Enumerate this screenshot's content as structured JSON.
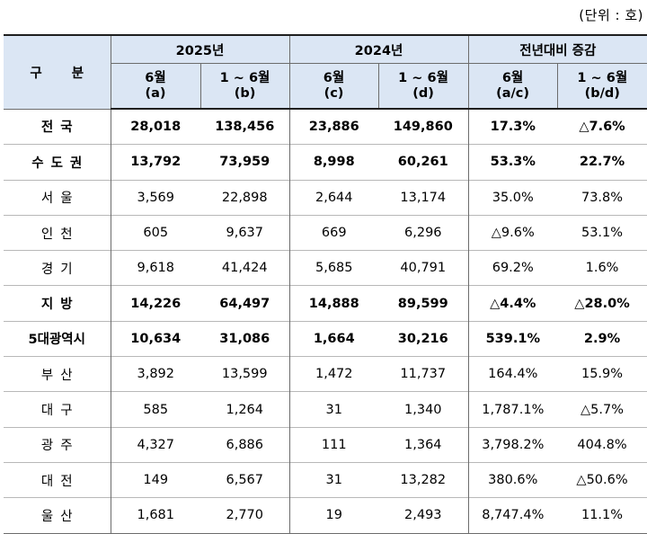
{
  "unit_label": "(단위 : 호)",
  "header": {
    "gubun": "구 분",
    "groups": [
      "2025년",
      "2024년",
      "전년대비 증감"
    ],
    "sub": [
      {
        "line1": "6월",
        "line2": "(a)"
      },
      {
        "line1": "1 ~ 6월",
        "line2": "(b)"
      },
      {
        "line1": "6월",
        "line2": "(c)"
      },
      {
        "line1": "1 ~ 6월",
        "line2": "(d)"
      },
      {
        "line1": "6월",
        "line2": "(a/c)"
      },
      {
        "line1": "1 ~ 6월",
        "line2": "(b/d)"
      }
    ]
  },
  "rows": [
    {
      "label": "전국",
      "values": [
        "28,018",
        "138,456",
        "23,886",
        "149,860",
        "17.3%",
        "△7.6%"
      ]
    },
    {
      "label": "수도권",
      "values": [
        "13,792",
        "73,959",
        "8,998",
        "60,261",
        "53.3%",
        "22.7%"
      ]
    },
    {
      "label": "서울",
      "values": [
        "3,569",
        "22,898",
        "2,644",
        "13,174",
        "35.0%",
        "73.8%"
      ]
    },
    {
      "label": "인천",
      "values": [
        "605",
        "9,637",
        "669",
        "6,296",
        "△9.6%",
        "53.1%"
      ]
    },
    {
      "label": "경기",
      "values": [
        "9,618",
        "41,424",
        "5,685",
        "40,791",
        "69.2%",
        "1.6%"
      ]
    },
    {
      "label": "지방",
      "values": [
        "14,226",
        "64,497",
        "14,888",
        "89,599",
        "△4.4%",
        "△28.0%"
      ]
    },
    {
      "label": "5대광역시",
      "values": [
        "10,634",
        "31,086",
        "1,664",
        "30,216",
        "539.1%",
        "2.9%"
      ]
    },
    {
      "label": "부산",
      "values": [
        "3,892",
        "13,599",
        "1,472",
        "11,737",
        "164.4%",
        "15.9%"
      ]
    },
    {
      "label": "대구",
      "values": [
        "585",
        "1,264",
        "31",
        "1,340",
        "1,787.1%",
        "△5.7%"
      ]
    },
    {
      "label": "광주",
      "values": [
        "4,327",
        "6,886",
        "111",
        "1,364",
        "3,798.2%",
        "404.8%"
      ]
    },
    {
      "label": "대전",
      "values": [
        "149",
        "6,567",
        "31",
        "13,282",
        "380.6%",
        "△50.6%"
      ]
    },
    {
      "label": "울산",
      "values": [
        "1,681",
        "2,770",
        "19",
        "2,493",
        "8,747.4%",
        "11.1%"
      ]
    }
  ],
  "colors": {
    "header_bg": "#dbe6f4"
  }
}
